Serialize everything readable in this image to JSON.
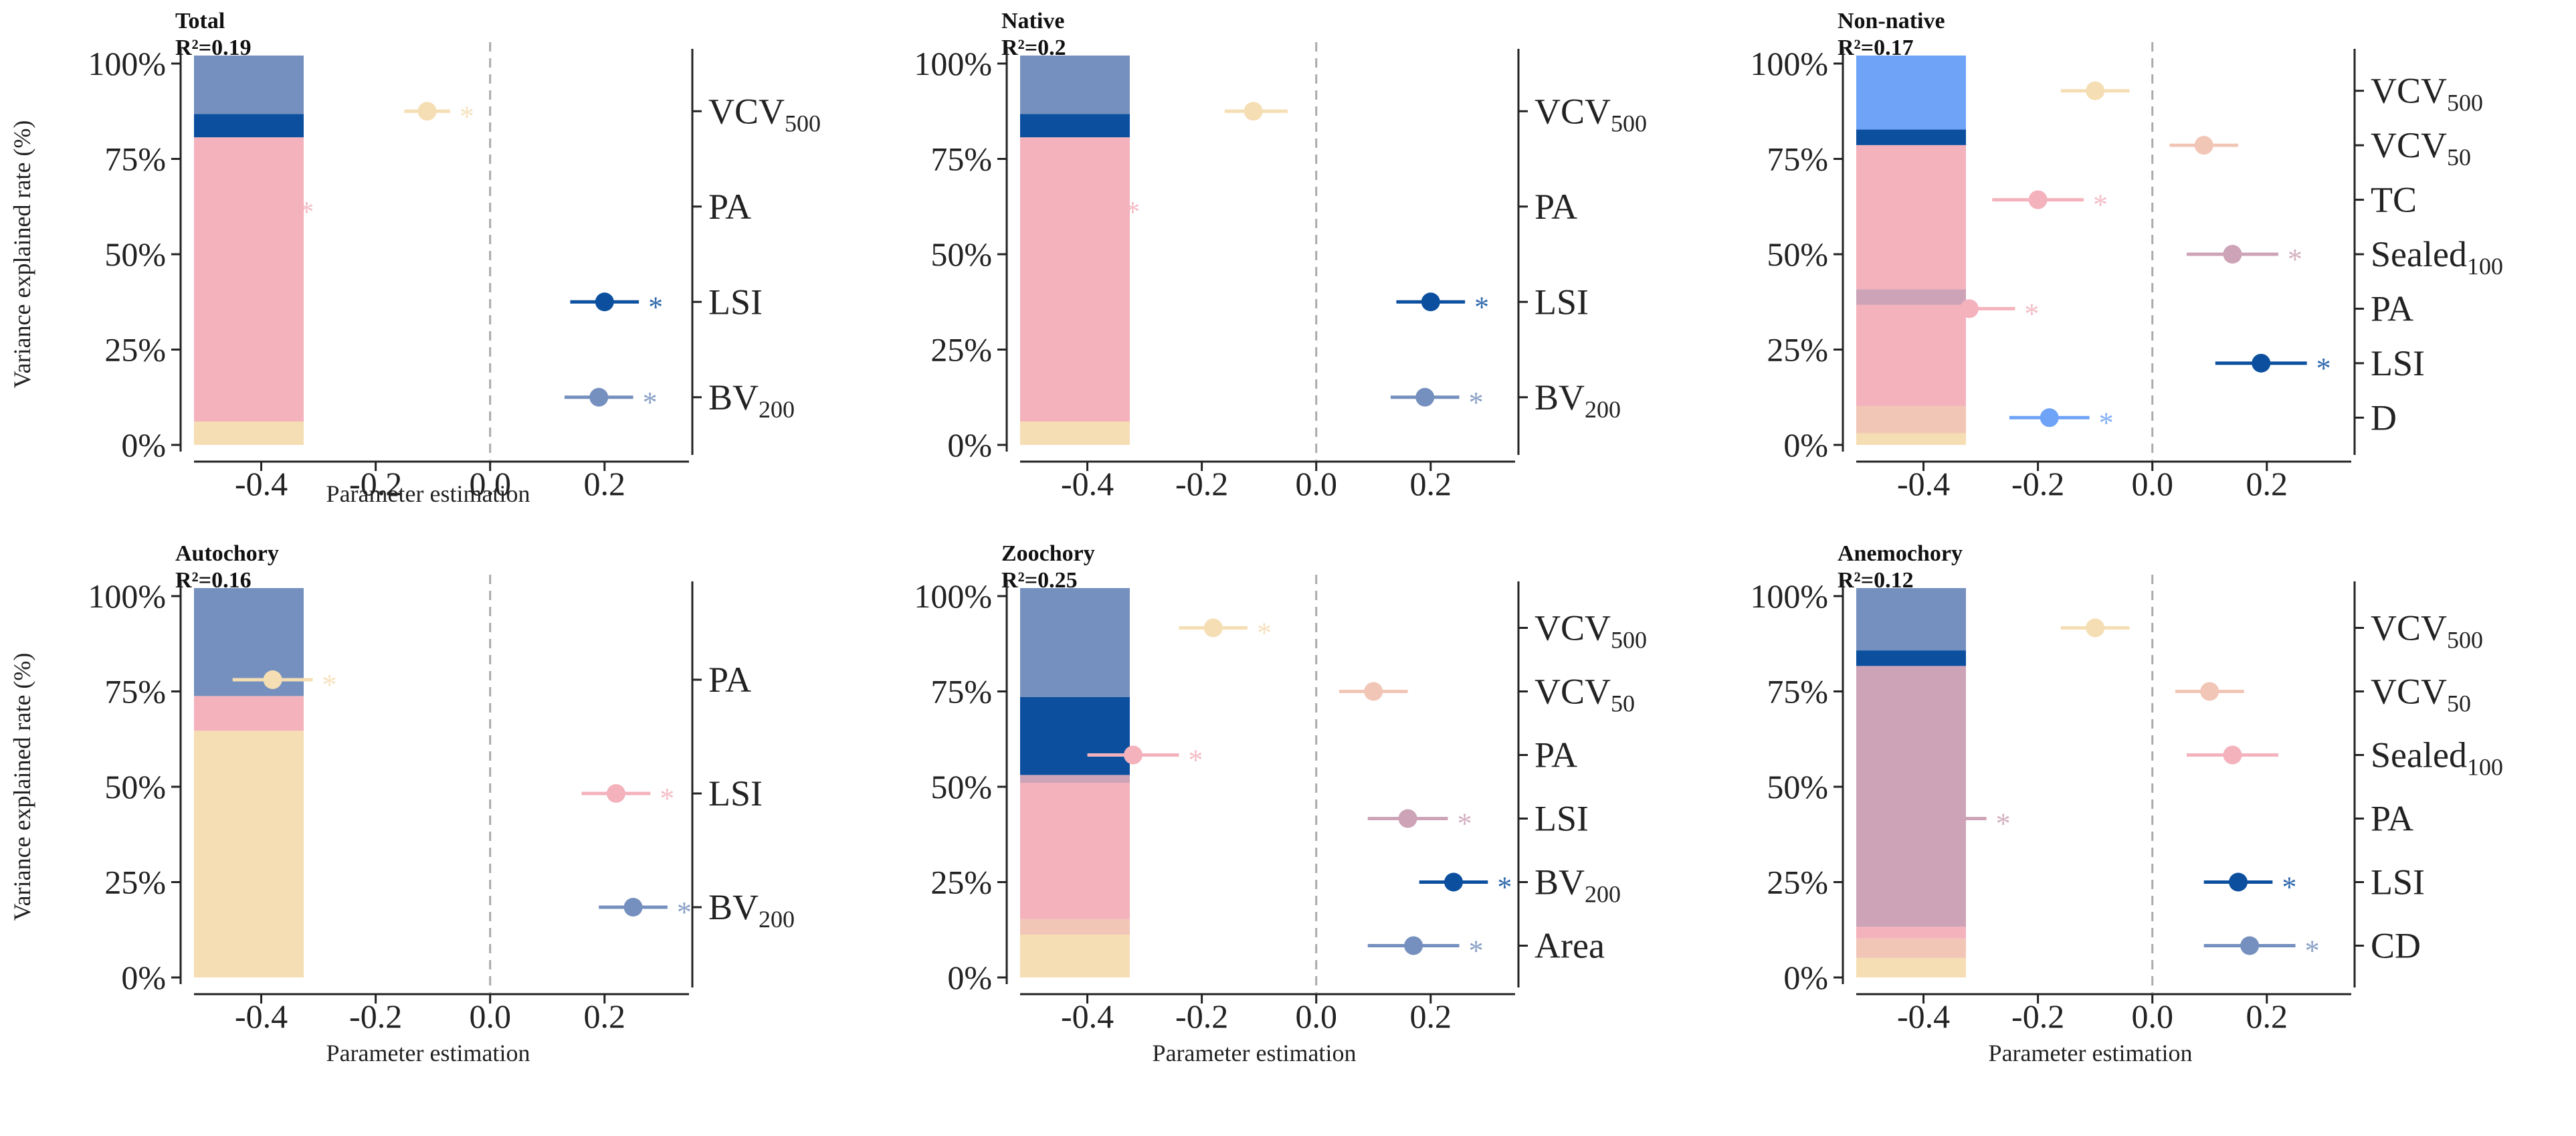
{
  "colors": {
    "VCV500": "#F5DEB3",
    "VCV50": "#F2C6B6",
    "PA": "#F4B2BC",
    "LSI": "#0B4F9E",
    "BV200": "#7590BE",
    "TC": "#F4B2BC",
    "Sealed100": "#CDA3B7",
    "D": "#6EA3F7",
    "Area": "#7590BE",
    "CD": "#7590BE"
  },
  "common": {
    "y_axis_label": "Variance explained rate (%)",
    "x_axis_label": "Parameter estimation",
    "pct_ticks": [
      "0%",
      "25%",
      "50%",
      "75%",
      "100%"
    ],
    "x_ticks": [
      "-0.4",
      "-0.2",
      "0.0",
      "0.2"
    ]
  },
  "chart_data": [
    {
      "type": "stacked-bar+forest",
      "title": "Total",
      "r2": "R²=0.19",
      "bar_ylim": [
        0,
        100
      ],
      "xlim": [
        -0.5,
        0.33
      ],
      "bar_segments": [
        {
          "predictor": "VCV500",
          "pct": 6
        },
        {
          "predictor": "PA",
          "pct": 73
        },
        {
          "predictor": "LSI",
          "pct": 6
        },
        {
          "predictor": "BV200",
          "pct": 15
        }
      ],
      "estimates": [
        {
          "base": "VCV",
          "sub": "500",
          "key": "VCV500",
          "est": -0.11,
          "lo": -0.15,
          "hi": -0.07,
          "star": true
        },
        {
          "base": "PA",
          "sub": "",
          "key": "PA",
          "est": -0.4,
          "lo": -0.45,
          "hi": -0.35,
          "star": true
        },
        {
          "base": "LSI",
          "sub": "",
          "key": "LSI",
          "est": 0.2,
          "lo": 0.14,
          "hi": 0.26,
          "star": true
        },
        {
          "base": "BV",
          "sub": "200",
          "key": "BV200",
          "est": 0.19,
          "lo": 0.13,
          "hi": 0.25,
          "star": true
        }
      ]
    },
    {
      "type": "stacked-bar+forest",
      "title": "Native",
      "r2": "R²=0.2",
      "bar_ylim": [
        0,
        100
      ],
      "xlim": [
        -0.5,
        0.33
      ],
      "bar_segments": [
        {
          "predictor": "VCV500",
          "pct": 6
        },
        {
          "predictor": "PA",
          "pct": 73
        },
        {
          "predictor": "LSI",
          "pct": 6
        },
        {
          "predictor": "BV200",
          "pct": 15
        }
      ],
      "estimates": [
        {
          "base": "VCV",
          "sub": "500",
          "key": "VCV500",
          "est": -0.11,
          "lo": -0.16,
          "hi": -0.05,
          "star": false
        },
        {
          "base": "PA",
          "sub": "",
          "key": "PA",
          "est": -0.41,
          "lo": -0.47,
          "hi": -0.35,
          "star": true
        },
        {
          "base": "LSI",
          "sub": "",
          "key": "LSI",
          "est": 0.2,
          "lo": 0.14,
          "hi": 0.26,
          "star": true
        },
        {
          "base": "BV",
          "sub": "200",
          "key": "BV200",
          "est": 0.19,
          "lo": 0.13,
          "hi": 0.25,
          "star": true
        }
      ]
    },
    {
      "type": "stacked-bar+forest",
      "title": "Non-native",
      "r2": "R²=0.17",
      "bar_ylim": [
        0,
        100
      ],
      "xlim": [
        -0.5,
        0.33
      ],
      "bar_segments": [
        {
          "predictor": "VCV500",
          "pct": 3
        },
        {
          "predictor": "VCV50",
          "pct": 7
        },
        {
          "predictor": "TC",
          "pct": 26
        },
        {
          "predictor": "Sealed100",
          "pct": 4
        },
        {
          "predictor": "PA",
          "pct": 37
        },
        {
          "predictor": "LSI",
          "pct": 4
        },
        {
          "predictor": "D",
          "pct": 19
        }
      ],
      "estimates": [
        {
          "base": "VCV",
          "sub": "500",
          "key": "VCV500",
          "est": -0.1,
          "lo": -0.16,
          "hi": -0.04,
          "star": false
        },
        {
          "base": "VCV",
          "sub": "50",
          "key": "VCV50",
          "est": 0.09,
          "lo": 0.03,
          "hi": 0.15,
          "star": false
        },
        {
          "base": "TC",
          "sub": "",
          "key": "TC",
          "est": -0.2,
          "lo": -0.28,
          "hi": -0.12,
          "star": true
        },
        {
          "base": "Sealed",
          "sub": "100",
          "key": "Sealed100",
          "est": 0.14,
          "lo": 0.06,
          "hi": 0.22,
          "star": true
        },
        {
          "base": "PA",
          "sub": "",
          "key": "PA",
          "est": -0.32,
          "lo": -0.4,
          "hi": -0.24,
          "star": true
        },
        {
          "base": "LSI",
          "sub": "",
          "key": "LSI",
          "est": 0.19,
          "lo": 0.11,
          "hi": 0.27,
          "star": true
        },
        {
          "base": "D",
          "sub": "",
          "key": "D",
          "est": -0.18,
          "lo": -0.25,
          "hi": -0.11,
          "star": true
        }
      ]
    },
    {
      "type": "stacked-bar+forest",
      "title": "Autochory",
      "r2": "R²=0.16",
      "bar_ylim": [
        0,
        100
      ],
      "xlim": [
        -0.5,
        0.33
      ],
      "bar_segments": [
        {
          "predictor": "VCV500",
          "pct": 64
        },
        {
          "predictor": "PA",
          "pct": 9
        },
        {
          "predictor": "BV200",
          "pct": 28
        }
      ],
      "estimates": [
        {
          "base": "PA",
          "sub": "",
          "key": "VCV500",
          "est": -0.38,
          "lo": -0.45,
          "hi": -0.31,
          "star": true
        },
        {
          "base": "LSI",
          "sub": "",
          "key": "PA",
          "est": 0.22,
          "lo": 0.16,
          "hi": 0.28,
          "star": true
        },
        {
          "base": "BV",
          "sub": "200",
          "key": "BV200",
          "est": 0.25,
          "lo": 0.19,
          "hi": 0.31,
          "star": true
        }
      ]
    },
    {
      "type": "stacked-bar+forest",
      "title": "Zoochory",
      "r2": "R²=0.25",
      "bar_ylim": [
        0,
        100
      ],
      "xlim": [
        -0.5,
        0.33
      ],
      "bar_segments": [
        {
          "predictor": "VCV500",
          "pct": 11
        },
        {
          "predictor": "VCV50",
          "pct": 4
        },
        {
          "predictor": "PA",
          "pct": 35
        },
        {
          "predictor": "Sealed100",
          "pct": 2
        },
        {
          "predictor": "LSI",
          "pct": 20
        },
        {
          "predictor": "BV200",
          "pct": 28
        }
      ],
      "estimates": [
        {
          "base": "VCV",
          "sub": "500",
          "key": "VCV500",
          "est": -0.18,
          "lo": -0.24,
          "hi": -0.12,
          "star": true
        },
        {
          "base": "VCV",
          "sub": "50",
          "key": "VCV50",
          "est": 0.1,
          "lo": 0.04,
          "hi": 0.16,
          "star": false
        },
        {
          "base": "PA",
          "sub": "",
          "key": "PA",
          "est": -0.32,
          "lo": -0.4,
          "hi": -0.24,
          "star": true
        },
        {
          "base": "LSI",
          "sub": "",
          "key": "Sealed100",
          "est": 0.16,
          "lo": 0.09,
          "hi": 0.23,
          "star": true
        },
        {
          "base": "BV",
          "sub": "200",
          "key": "LSI",
          "est": 0.24,
          "lo": 0.18,
          "hi": 0.3,
          "star": true
        },
        {
          "base": "Area",
          "sub": "",
          "key": "Area",
          "est": 0.17,
          "lo": 0.09,
          "hi": 0.25,
          "star": true
        }
      ]
    },
    {
      "type": "stacked-bar+forest",
      "title": "Anemochory",
      "r2": "R²=0.12",
      "bar_ylim": [
        0,
        100
      ],
      "xlim": [
        -0.5,
        0.33
      ],
      "bar_segments": [
        {
          "predictor": "VCV500",
          "pct": 5
        },
        {
          "predictor": "VCV50",
          "pct": 5
        },
        {
          "predictor": "PA",
          "pct": 3
        },
        {
          "predictor": "Sealed100",
          "pct": 67
        },
        {
          "predictor": "LSI",
          "pct": 4
        },
        {
          "predictor": "CD",
          "pct": 16
        }
      ],
      "estimates": [
        {
          "base": "VCV",
          "sub": "500",
          "key": "VCV500",
          "est": -0.1,
          "lo": -0.16,
          "hi": -0.04,
          "star": false
        },
        {
          "base": "VCV",
          "sub": "50",
          "key": "VCV50",
          "est": 0.1,
          "lo": 0.04,
          "hi": 0.16,
          "star": false
        },
        {
          "base": "Sealed",
          "sub": "100",
          "key": "PA",
          "est": 0.14,
          "lo": 0.06,
          "hi": 0.22,
          "star": false
        },
        {
          "base": "PA",
          "sub": "",
          "key": "Sealed100",
          "est": -0.36,
          "lo": -0.43,
          "hi": -0.29,
          "star": true
        },
        {
          "base": "LSI",
          "sub": "",
          "key": "LSI",
          "est": 0.15,
          "lo": 0.09,
          "hi": 0.21,
          "star": true
        },
        {
          "base": "CD",
          "sub": "",
          "key": "CD",
          "est": 0.17,
          "lo": 0.09,
          "hi": 0.25,
          "star": true
        }
      ]
    }
  ]
}
